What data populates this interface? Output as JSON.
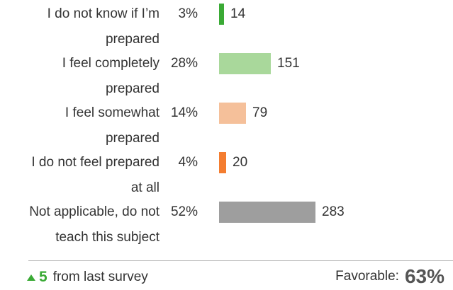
{
  "chart_data": {
    "type": "bar",
    "orientation": "horizontal",
    "categories": [
      [
        "I do not know if I’m",
        "prepared"
      ],
      [
        "I feel completely",
        "prepared"
      ],
      [
        "I feel somewhat",
        "prepared"
      ],
      [
        "I do not feel prepared",
        "at all"
      ],
      [
        "Not applicable, do not",
        "teach this subject"
      ]
    ],
    "percent_labels": [
      "3%",
      "28%",
      "14%",
      "4%",
      "52%"
    ],
    "values": [
      14,
      151,
      79,
      20,
      283
    ],
    "colors": [
      "#3aaa35",
      "#a9d89b",
      "#f5c09a",
      "#f47d30",
      "#9e9e9e"
    ],
    "xlim": [
      0,
      283
    ]
  },
  "footer": {
    "delta_icon": "triangle-up-icon",
    "delta_value": "5",
    "delta_text": "from last survey",
    "favorable_label": "Favorable:",
    "favorable_value": "63%"
  }
}
